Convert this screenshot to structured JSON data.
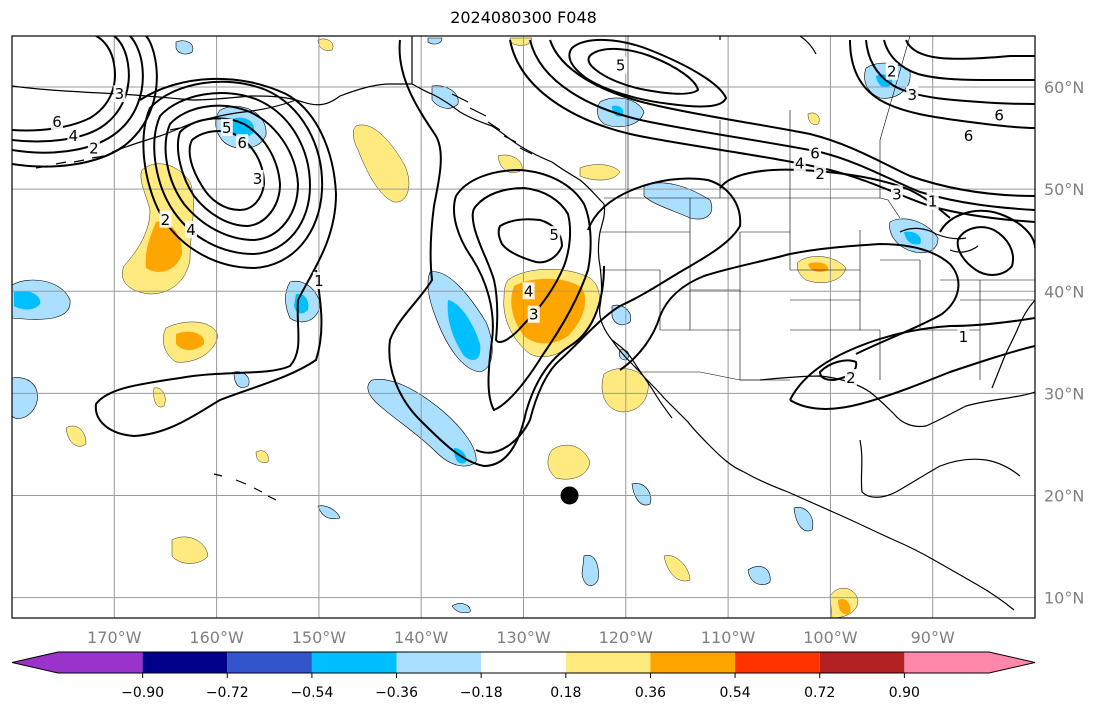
{
  "title": "2024080300 F048",
  "map": {
    "lon_range": [
      -180,
      -80
    ],
    "lat_range": [
      8,
      65
    ],
    "lon_ticks": [
      {
        "lon": -170,
        "label": "170°W"
      },
      {
        "lon": -160,
        "label": "160°W"
      },
      {
        "lon": -150,
        "label": "150°W"
      },
      {
        "lon": -140,
        "label": "140°W"
      },
      {
        "lon": -130,
        "label": "130°W"
      },
      {
        "lon": -120,
        "label": "120°W"
      },
      {
        "lon": -110,
        "label": "110°W"
      },
      {
        "lon": -100,
        "label": "100°W"
      },
      {
        "lon": -90,
        "label": "90°W"
      }
    ],
    "lat_ticks": [
      {
        "lat": 10,
        "label": "10°N"
      },
      {
        "lat": 20,
        "label": "20°N"
      },
      {
        "lat": 30,
        "label": "30°N"
      },
      {
        "lat": 40,
        "label": "40°N"
      },
      {
        "lat": 50,
        "label": "50°N"
      },
      {
        "lat": 60,
        "label": "60°N"
      }
    ],
    "marker": {
      "lon": -125.5,
      "lat": 20,
      "color": "#000000"
    }
  },
  "contour_labels": [
    {
      "text": "6",
      "lon": -175.6,
      "lat": 56.6
    },
    {
      "text": "4",
      "lon": -174,
      "lat": 55.2
    },
    {
      "text": "2",
      "lon": -172,
      "lat": 54
    },
    {
      "text": "3",
      "lon": -169.5,
      "lat": 59.3
    },
    {
      "text": "5",
      "lon": -159,
      "lat": 56
    },
    {
      "text": "6",
      "lon": -157.5,
      "lat": 54.5
    },
    {
      "text": "3",
      "lon": -156,
      "lat": 51
    },
    {
      "text": "2",
      "lon": -165,
      "lat": 47
    },
    {
      "text": "4",
      "lon": -162.5,
      "lat": 46
    },
    {
      "text": "1",
      "lon": -150,
      "lat": 41
    },
    {
      "text": "5",
      "lon": -120.5,
      "lat": 62.1
    },
    {
      "text": "5",
      "lon": -127,
      "lat": 45.5
    },
    {
      "text": "4",
      "lon": -129.5,
      "lat": 40
    },
    {
      "text": "3",
      "lon": -129,
      "lat": 37.7
    },
    {
      "text": "6",
      "lon": -101.5,
      "lat": 53.5
    },
    {
      "text": "4",
      "lon": -103,
      "lat": 52.5
    },
    {
      "text": "2",
      "lon": -101,
      "lat": 51.5
    },
    {
      "text": "3",
      "lon": -93.5,
      "lat": 49.5
    },
    {
      "text": "2",
      "lon": -94,
      "lat": 61.5
    },
    {
      "text": "3",
      "lon": -92,
      "lat": 59.2
    },
    {
      "text": "6",
      "lon": -83.5,
      "lat": 57.2
    },
    {
      "text": "6",
      "lon": -86.5,
      "lat": 55.2
    },
    {
      "text": "2",
      "lon": -98,
      "lat": 31.5
    },
    {
      "text": "1",
      "lon": -87,
      "lat": 35.5
    },
    {
      "text": "1",
      "lon": -90,
      "lat": 48.8
    }
  ],
  "colorbar": {
    "ticks": [
      "−0.90",
      "−0.72",
      "−0.54",
      "−0.36",
      "−0.18",
      "0.18",
      "0.36",
      "0.54",
      "0.72",
      "0.90"
    ],
    "colors": [
      "#9933cc",
      "#00008b",
      "#3355cc",
      "#00bfff",
      "#aadfff",
      "#ffffff",
      "#ffea80",
      "#ffa500",
      "#ff3300",
      "#b22222",
      "#ff88aa"
    ]
  }
}
